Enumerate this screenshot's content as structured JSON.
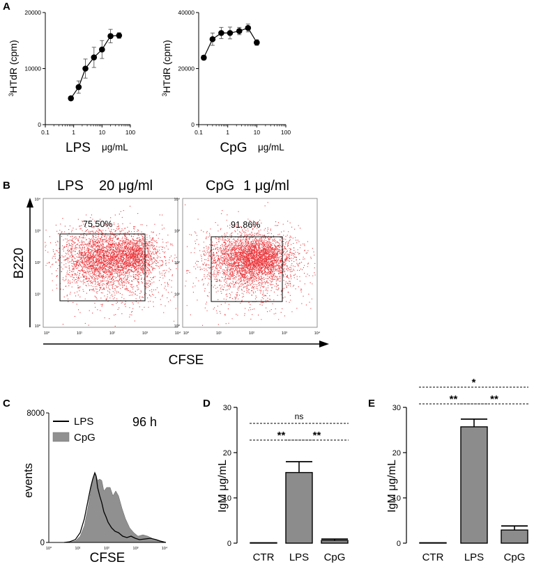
{
  "colors": {
    "bar": "#8c8c8c",
    "dots": "#e8141a",
    "histogram_fill": "#909090",
    "axis": "#000000"
  },
  "chart_data": [
    {
      "panel": "A",
      "side": "left",
      "type": "line",
      "xscale": "log",
      "ylabel": "3HTdR (cpm)",
      "xlabel": "LPS",
      "xunit": "μg/mL",
      "xlim": [
        0.1,
        100
      ],
      "ylim": [
        0,
        20000
      ],
      "xticks": [
        "0.1",
        "1",
        "10",
        "100"
      ],
      "yticks": [
        "0",
        "10000",
        "20000"
      ],
      "points": [
        {
          "x": 0.8,
          "y": 4700,
          "err": 300
        },
        {
          "x": 1.5,
          "y": 6700,
          "err": 1100
        },
        {
          "x": 2.6,
          "y": 10000,
          "err": 1700
        },
        {
          "x": 5.2,
          "y": 12000,
          "err": 1800
        },
        {
          "x": 10,
          "y": 13400,
          "err": 1600
        },
        {
          "x": 20,
          "y": 15800,
          "err": 1200
        },
        {
          "x": 40,
          "y": 15900,
          "err": 500
        }
      ]
    },
    {
      "panel": "A",
      "side": "right",
      "type": "line",
      "xscale": "log",
      "ylabel": "3HTdR (cpm)",
      "xlabel": "CpG",
      "xunit": "μg/mL",
      "xlim": [
        0.1,
        100
      ],
      "ylim": [
        0,
        40000
      ],
      "xticks": [
        "0.1",
        "1",
        "10",
        "100"
      ],
      "yticks": [
        "0",
        "20000",
        "40000"
      ],
      "points": [
        {
          "x": 0.15,
          "y": 23900,
          "err": 800
        },
        {
          "x": 0.3,
          "y": 30500,
          "err": 2200
        },
        {
          "x": 0.6,
          "y": 32700,
          "err": 2000
        },
        {
          "x": 1.2,
          "y": 32700,
          "err": 2100
        },
        {
          "x": 2.5,
          "y": 33400,
          "err": 1300
        },
        {
          "x": 5,
          "y": 34500,
          "err": 1400
        },
        {
          "x": 10,
          "y": 29300,
          "err": 1000
        }
      ]
    },
    {
      "panel": "B",
      "type": "scatter",
      "subtype": "flow-cytometry-dotplot",
      "ylabel": "B220",
      "xlabel": "CFSE",
      "scale": "log",
      "axis_ticks": [
        "10⁰",
        "10¹",
        "10²",
        "10³",
        "10⁴"
      ],
      "plots": [
        {
          "title_stim": "LPS",
          "title_dose": "20 μg/ml",
          "gate_percent": "75.50%",
          "gate_cfse": [
            3,
            400
          ],
          "gate_b220": [
            5,
            1000
          ]
        },
        {
          "title_stim": "CpG",
          "title_dose": "1 μg/ml",
          "gate_percent": "91.86%",
          "gate_cfse": [
            3,
            300
          ],
          "gate_b220": [
            5,
            1000
          ]
        }
      ]
    },
    {
      "panel": "C",
      "type": "area",
      "subtype": "histogram",
      "ylabel": "events",
      "xlabel": "CFSE",
      "annotation": "96 h",
      "ylim": [
        0,
        8000
      ],
      "yticks": [
        "0",
        "8000"
      ],
      "xticks": [
        "10⁰",
        "10¹",
        "10²",
        "10³",
        "10⁴"
      ],
      "legend": [
        "LPS",
        "CpG"
      ],
      "legend_position": "top-left"
    },
    {
      "panel": "D",
      "type": "bar",
      "ylabel": "IgM μg/mL",
      "ylim": [
        0,
        30
      ],
      "yticks": [
        "0",
        "10",
        "20",
        "30"
      ],
      "categories": [
        "CTR",
        "LPS",
        "CpG"
      ],
      "values": [
        0.1,
        15.6,
        0.6
      ],
      "errors": [
        0,
        2.4,
        0.3
      ],
      "significance": [
        {
          "from": "CTR",
          "to": "LPS",
          "label": "**"
        },
        {
          "from": "LPS",
          "to": "CpG",
          "label": "**"
        },
        {
          "from": "CTR",
          "to": "CpG",
          "label": "ns"
        }
      ]
    },
    {
      "panel": "E",
      "type": "bar",
      "ylabel": "IgM μg/mL",
      "ylim": [
        0,
        30
      ],
      "yticks": [
        "0",
        "10",
        "20",
        "30"
      ],
      "categories": [
        "CTR",
        "LPS",
        "CpG"
      ],
      "values": [
        0.1,
        25.7,
        2.9
      ],
      "errors": [
        0,
        1.7,
        0.9
      ],
      "significance": [
        {
          "from": "CTR",
          "to": "LPS",
          "label": "**"
        },
        {
          "from": "LPS",
          "to": "CpG",
          "label": "**"
        },
        {
          "from": "CTR",
          "to": "CpG",
          "label": "*"
        }
      ]
    }
  ]
}
